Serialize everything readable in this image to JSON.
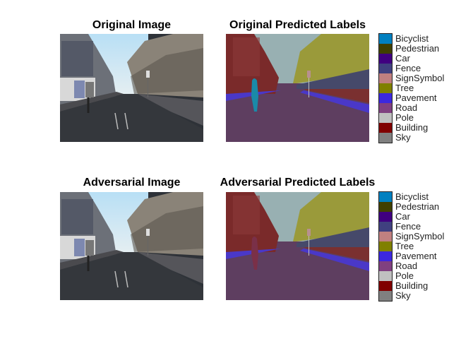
{
  "panels": {
    "original_image": {
      "title": "Original Image"
    },
    "original_labels": {
      "title": "Original Predicted Labels"
    },
    "adversarial_image": {
      "title": "Adversarial Image"
    },
    "adversarial_labels": {
      "title": "Adversarial Predicted Labels"
    }
  },
  "legend": [
    {
      "label": "Bicyclist",
      "color": "#0080C0"
    },
    {
      "label": "Pedestrian",
      "color": "#404000"
    },
    {
      "label": "Car",
      "color": "#400080"
    },
    {
      "label": "Fence",
      "color": "#404080"
    },
    {
      "label": "SignSymbol",
      "color": "#C08080"
    },
    {
      "label": "Tree",
      "color": "#808000"
    },
    {
      "label": "Pavement",
      "color": "#3C28DE"
    },
    {
      "label": "Road",
      "color": "#804080"
    },
    {
      "label": "Pole",
      "color": "#C0C0C0"
    },
    {
      "label": "Building",
      "color": "#800000"
    },
    {
      "label": "Sky",
      "color": "#808080"
    }
  ]
}
